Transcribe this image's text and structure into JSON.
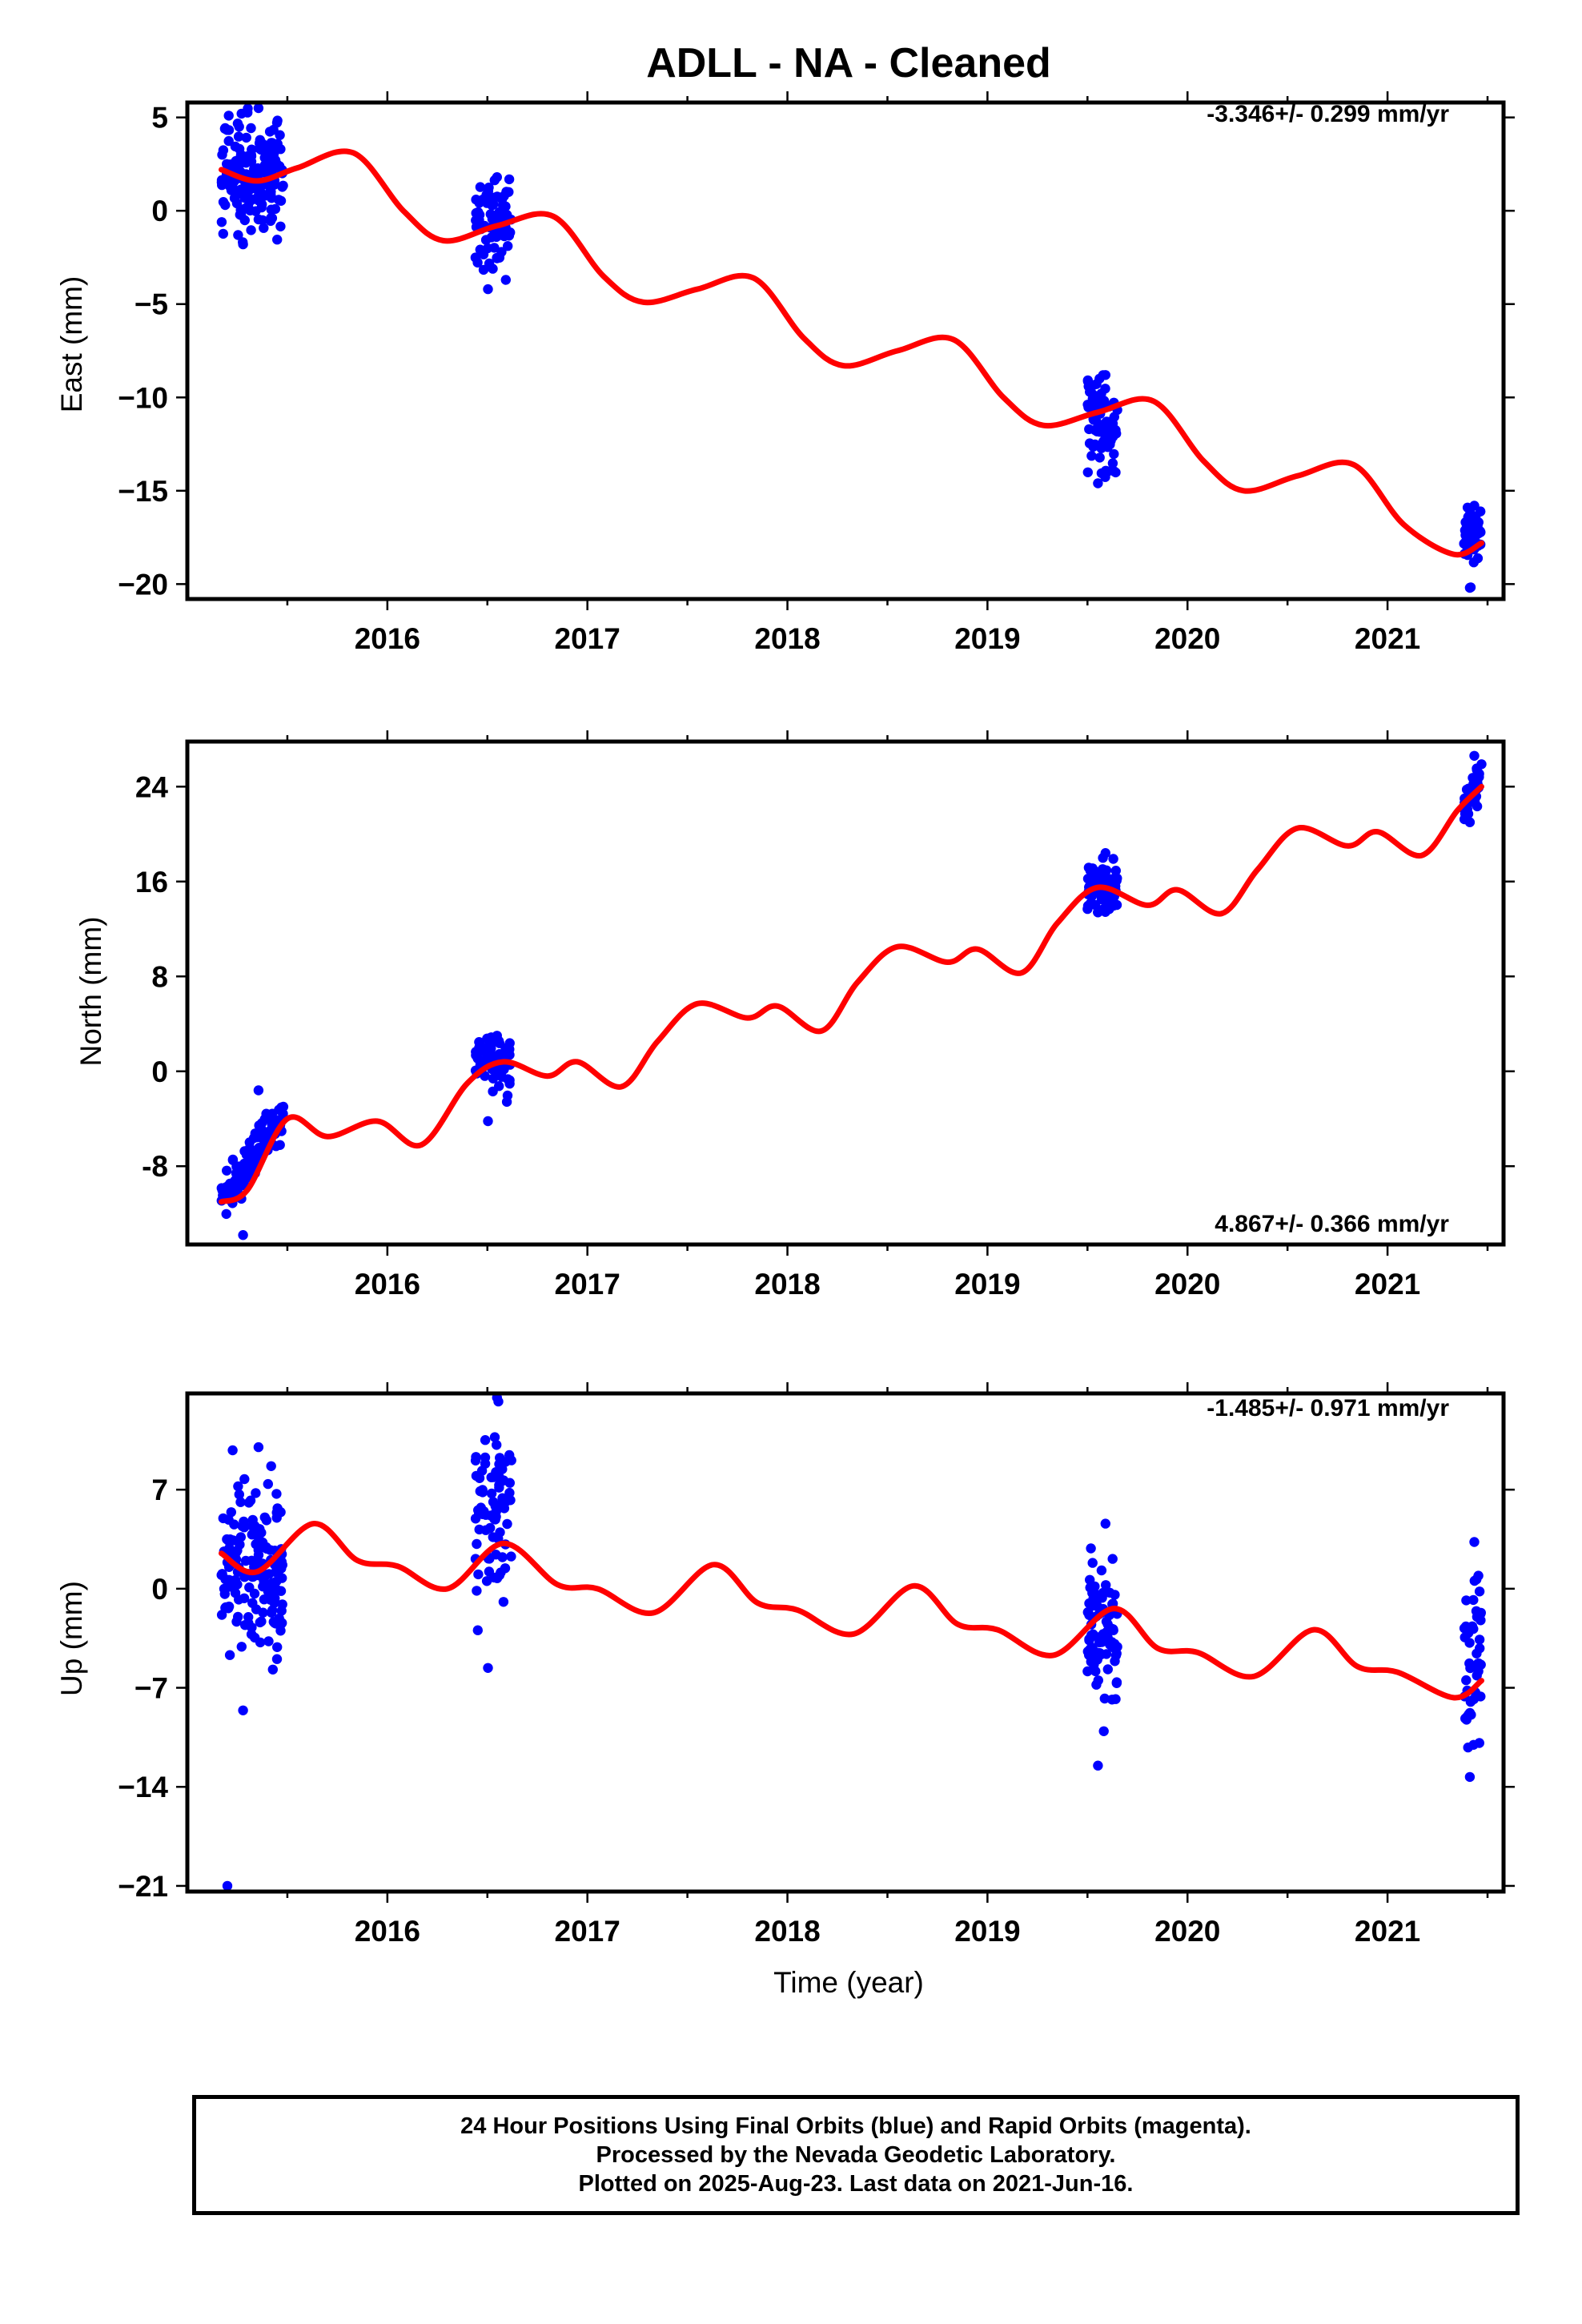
{
  "title": "ADLL  - NA - Cleaned",
  "x_ticks": [
    "2016",
    "2017",
    "2018",
    "2019",
    "2020",
    "2021"
  ],
  "xlabel": "Time (year)",
  "colors": {
    "points": "#0000ff",
    "fit": "#ff0000",
    "frame": "#000000"
  },
  "chart_data": [
    {
      "type": "scatter",
      "panel": "east",
      "ylabel": "East (mm)",
      "rate": "-3.346+/- 0.299 mm/yr",
      "rate_position": "top-right",
      "yticks": [
        "5",
        "0",
        "−5",
        "−10",
        "−15",
        "−20"
      ],
      "yticks_values": [
        5,
        0,
        -5,
        -10,
        -15,
        -20
      ],
      "ylim": [
        -20.8,
        5.8
      ],
      "xlim": [
        2015.0,
        2021.58
      ],
      "series": [
        {
          "kind": "points",
          "clusters": [
            {
              "x_range": [
                2015.17,
                2015.48
              ],
              "y_center": 2.0,
              "y_spread": 1.6,
              "y_min": -1.8,
              "y_max": 5.5,
              "n": 160
            },
            {
              "x_range": [
                2016.44,
                2016.62
              ],
              "y_center": -0.8,
              "y_spread": 1.4,
              "y_min": -4.2,
              "y_max": 1.8,
              "n": 80
            },
            {
              "x_range": [
                2019.5,
                2019.65
              ],
              "y_center": -11.5,
              "y_spread": 1.2,
              "y_min": -14.6,
              "y_max": -8.8,
              "n": 90
            },
            {
              "x_range": [
                2021.38,
                2021.47
              ],
              "y_center": -17.5,
              "y_spread": 0.9,
              "y_min": -20.2,
              "y_max": -15.8,
              "n": 45
            }
          ]
        },
        {
          "kind": "line",
          "x": [
            2015.17,
            2015.35,
            2015.55,
            2015.83,
            2016.08,
            2016.28,
            2016.55,
            2016.83,
            2017.08,
            2017.28,
            2017.55,
            2017.83,
            2018.08,
            2018.28,
            2018.55,
            2018.83,
            2019.08,
            2019.28,
            2019.55,
            2019.83,
            2020.08,
            2020.28,
            2020.55,
            2020.83,
            2021.08,
            2021.33,
            2021.47
          ],
          "y": [
            2.2,
            1.6,
            2.3,
            3.1,
            0.0,
            -1.6,
            -0.8,
            -0.3,
            -3.5,
            -4.9,
            -4.2,
            -3.6,
            -6.8,
            -8.3,
            -7.5,
            -6.9,
            -10.0,
            -11.5,
            -10.8,
            -10.2,
            -13.4,
            -15.0,
            -14.2,
            -13.6,
            -16.8,
            -18.4,
            -17.8
          ]
        }
      ]
    },
    {
      "type": "scatter",
      "panel": "north",
      "ylabel": "North (mm)",
      "rate": "4.867+/- 0.366 mm/yr",
      "rate_position": "bottom-right",
      "yticks": [
        "24",
        "16",
        "8",
        "0",
        "-8"
      ],
      "yticks_values": [
        24,
        16,
        8,
        0,
        -8
      ],
      "ylim": [
        -14.6,
        27.8
      ],
      "xlim": [
        2015.0,
        2021.58
      ],
      "series": [
        {
          "kind": "points",
          "clusters": [
            {
              "x_range": [
                2015.17,
                2015.48
              ],
              "trend": [
                -11.0,
                -3.5
              ],
              "y_spread": 0.9,
              "y_min": -13.8,
              "y_max": -1.6,
              "n": 120
            },
            {
              "x_range": [
                2016.44,
                2016.62
              ],
              "y_center": 0.6,
              "y_spread": 1.2,
              "y_min": -4.2,
              "y_max": 3.0,
              "n": 70
            },
            {
              "x_range": [
                2019.5,
                2019.65
              ],
              "y_center": 15.5,
              "y_spread": 1.0,
              "y_min": 13.4,
              "y_max": 18.4,
              "n": 100
            },
            {
              "x_range": [
                2021.38,
                2021.47
              ],
              "trend": [
                22.0,
                25.0
              ],
              "y_spread": 0.8,
              "y_min": 21.0,
              "y_max": 26.6,
              "n": 40
            }
          ]
        },
        {
          "kind": "line",
          "x": [
            2015.17,
            2015.3,
            2015.5,
            2015.7,
            2015.95,
            2016.17,
            2016.4,
            2016.58,
            2016.8,
            2016.95,
            2017.17,
            2017.35,
            2017.55,
            2017.8,
            2017.95,
            2018.17,
            2018.35,
            2018.55,
            2018.8,
            2018.95,
            2019.17,
            2019.35,
            2019.55,
            2019.8,
            2019.95,
            2020.17,
            2020.35,
            2020.55,
            2020.8,
            2020.95,
            2021.17,
            2021.35,
            2021.47
          ],
          "y": [
            -11.0,
            -10.0,
            -4.0,
            -5.5,
            -4.2,
            -6.2,
            -1.0,
            0.8,
            -0.4,
            0.8,
            -1.3,
            2.5,
            5.7,
            4.5,
            5.5,
            3.4,
            7.5,
            10.5,
            9.2,
            10.3,
            8.3,
            12.5,
            15.5,
            14.0,
            15.3,
            13.3,
            17.0,
            20.5,
            19.0,
            20.2,
            18.2,
            22.0,
            24.0
          ]
        }
      ]
    },
    {
      "type": "scatter",
      "panel": "up",
      "ylabel": "Up (mm)",
      "rate": "-1.485+/- 0.971 mm/yr",
      "rate_position": "top-right",
      "yticks": [
        "7",
        "0",
        "−7",
        "−14",
        "−21"
      ],
      "yticks_values": [
        7,
        0,
        -7,
        -14,
        -21
      ],
      "ylim": [
        -21.4,
        13.8
      ],
      "xlim": [
        2015.0,
        2021.58
      ],
      "series": [
        {
          "kind": "points",
          "clusters": [
            {
              "x_range": [
                2015.17,
                2015.48
              ],
              "y_center": 1.0,
              "y_spread": 3.0,
              "y_min": -8.6,
              "y_max": 10.0,
              "n": 160,
              "outliers": [
                [
                  2015.2,
                  -21.0
                ]
              ]
            },
            {
              "x_range": [
                2016.44,
                2016.62
              ],
              "y_center": 5.0,
              "y_spread": 3.2,
              "y_min": -5.6,
              "y_max": 13.5,
              "n": 80
            },
            {
              "x_range": [
                2019.5,
                2019.65
              ],
              "y_center": -3.0,
              "y_spread": 2.5,
              "y_min": -12.5,
              "y_max": 4.6,
              "n": 90
            },
            {
              "x_range": [
                2021.38,
                2021.47
              ],
              "y_center": -5.0,
              "y_spread": 3.2,
              "y_min": -13.3,
              "y_max": 3.3,
              "n": 45
            }
          ]
        },
        {
          "kind": "line",
          "x": [
            2015.17,
            2015.35,
            2015.63,
            2015.85,
            2016.05,
            2016.3,
            2016.58,
            2016.85,
            2017.05,
            2017.33,
            2017.63,
            2017.85,
            2018.05,
            2018.33,
            2018.63,
            2018.85,
            2019.05,
            2019.33,
            2019.63,
            2019.85,
            2020.05,
            2020.33,
            2020.63,
            2020.85,
            2021.05,
            2021.33,
            2021.47
          ],
          "y": [
            2.5,
            1.2,
            4.6,
            2.0,
            1.6,
            0.0,
            3.2,
            0.3,
            0.0,
            -1.7,
            1.7,
            -1.0,
            -1.5,
            -3.2,
            0.2,
            -2.5,
            -2.9,
            -4.7,
            -1.4,
            -4.2,
            -4.5,
            -6.2,
            -2.9,
            -5.5,
            -5.9,
            -7.7,
            -6.5
          ]
        }
      ]
    }
  ],
  "footer": {
    "line1": "24 Hour Positions Using Final Orbits (blue) and Rapid Orbits (magenta).",
    "line2": "Processed by the Nevada Geodetic Laboratory.",
    "line3": "Plotted on 2025-Aug-23. Last data on 2021-Jun-16."
  }
}
